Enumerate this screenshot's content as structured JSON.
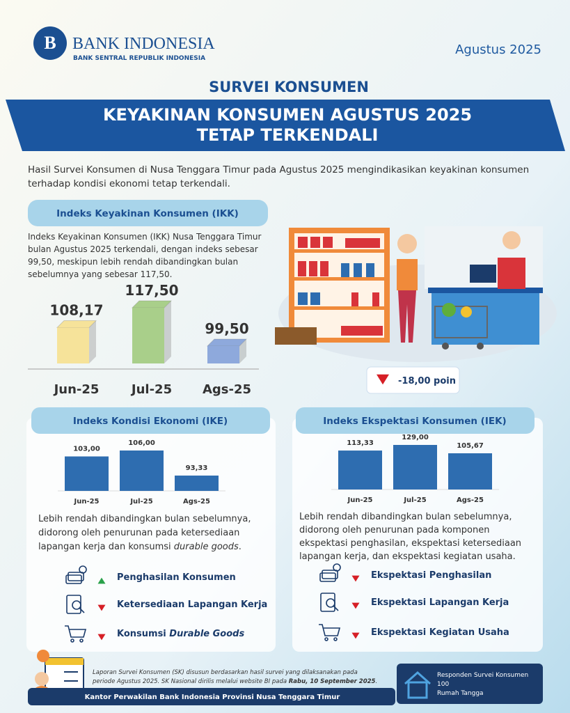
{
  "header": {
    "bank_name": "BANK INDONESIA",
    "bank_subtitle": "BANK SENTRAL REPUBLIK INDONESIA",
    "period": "Agustus 2025"
  },
  "survey_label": "SURVEI KONSUMEN",
  "headline": [
    "KEYAKINAN KONSUMEN AGUSTUS 2025",
    "TETAP TERKENDALI"
  ],
  "intro": [
    [
      "Hasil Survei Konsumen di Nusa Tenggara Timur pada Agustus 2025 mengindikasikan keyakinan konsumen"
    ],
    [
      "terhadap kondisi ekonomi tetap terkendali."
    ]
  ],
  "ikk": {
    "title": "Indeks Keyakinan Konsumen (IKK)",
    "description": [
      [
        "Indeks Keyakinan Konsumen (IKK) Nusa Tenggara Timur"
      ],
      [
        "bulan Agustus 2025 terkendali, dengan indeks sebesar"
      ],
      [
        "99,50, meskipun lebih rendah dibandingkan bulan"
      ],
      [
        "sebelumnya yang sebesar 117,50."
      ]
    ],
    "chart": {
      "type": "bar3d",
      "categories": [
        "Jun-25",
        "Jul-25",
        "Ags-25"
      ],
      "values": [
        108.17,
        117.5,
        99.5
      ],
      "value_labels": [
        "108,17",
        "117,50",
        "99,50"
      ],
      "colors": [
        "#f6e39a",
        "#a9cf8a",
        "#8ea9dc"
      ]
    },
    "change": {
      "value": -18,
      "label": "-18,00 poin",
      "color": "#d61f26"
    }
  },
  "ike": {
    "title": "Indeks Kondisi Ekonomi (IKE)",
    "chart": {
      "type": "bar",
      "categories": [
        "Jun-25",
        "Jul-25",
        "Ags-25"
      ],
      "values": [
        103,
        106,
        93.33
      ],
      "value_labels": [
        "103,00",
        "106,00",
        "93,33"
      ],
      "color": "#2e6db0"
    },
    "description": [
      [
        "Lebih rendah dibandingkan bulan sebelumnya,"
      ],
      [
        "didorong oleh penurunan pada ketersediaan"
      ],
      [
        "lapangan kerja dan konsumsi ",
        {
          "italic": "durable goods"
        },
        "."
      ]
    ],
    "items": [
      {
        "label": [
          "Penghasilan Konsumen"
        ],
        "direction": "up"
      },
      {
        "label": [
          "Ketersediaan Lapangan Kerja"
        ],
        "direction": "down"
      },
      {
        "label": [
          "Konsumsi ",
          {
            "italic": "Durable Goods"
          }
        ],
        "direction": "down"
      }
    ]
  },
  "iek": {
    "title": "Indeks Ekspektasi Konsumen (IEK)",
    "chart": {
      "type": "bar",
      "categories": [
        "Jun-25",
        "Jul-25",
        "Ags-25"
      ],
      "values": [
        113.33,
        129,
        105.67
      ],
      "value_labels": [
        "113,33",
        "129,00",
        "105,67"
      ],
      "color": "#2e6db0"
    },
    "description": [
      [
        "Lebih rendah dibandingkan bulan sebelumnya,"
      ],
      [
        "didorong oleh penurunan pada komponen"
      ],
      [
        "ekspektasi penghasilan, ekspektasi ketersediaan"
      ],
      [
        "lapangan kerja, dan ekspektasi kegiatan usaha."
      ]
    ],
    "items": [
      {
        "label": [
          "Ekspektasi Penghasilan"
        ],
        "direction": "down"
      },
      {
        "label": [
          "Ekspektasi Lapangan Kerja"
        ],
        "direction": "down"
      },
      {
        "label": [
          "Ekspektasi Kegiatan Usaha"
        ],
        "direction": "down"
      }
    ]
  },
  "footer": {
    "note": [
      [
        "Laporan Survei Konsumen (SK) disusun berdasarkan hasil survei yang dilaksanakan pada"
      ],
      [
        "periode Agustus 2025. SK Nasional dirilis melalui website BI pada ",
        {
          "bold": "Rabu, 10 September 2025"
        },
        "."
      ]
    ],
    "respondents": {
      "label": "Responden Survei Konsumen",
      "count": 100,
      "unit": "Rumah Tangga"
    },
    "office": "Kantor Perwakilan Bank Indonesia Provinsi Nusa Tenggara Timur"
  }
}
